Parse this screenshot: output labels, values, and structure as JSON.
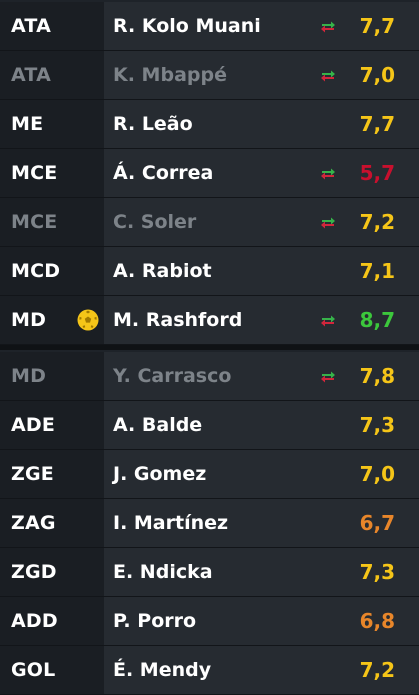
{
  "colors": {
    "yellow": "#f5c518",
    "red": "#c8102e",
    "green": "#3cc83c",
    "orange": "#e8862a"
  },
  "players": [
    {
      "pos": "ATA",
      "name": "R. Kolo Muani",
      "rating": "7,7",
      "rating_color": "#f5c518",
      "swap": true,
      "sub": false,
      "motm": false
    },
    {
      "pos": "ATA",
      "name": "K. Mbappé",
      "rating": "7,0",
      "rating_color": "#f5c518",
      "swap": true,
      "sub": true,
      "motm": false
    },
    {
      "pos": "ME",
      "name": "R. Leão",
      "rating": "7,7",
      "rating_color": "#f5c518",
      "swap": false,
      "sub": false,
      "motm": false
    },
    {
      "pos": "MCE",
      "name": "Á. Correa",
      "rating": "5,7",
      "rating_color": "#c8102e",
      "swap": true,
      "sub": false,
      "motm": false
    },
    {
      "pos": "MCE",
      "name": "C. Soler",
      "rating": "7,2",
      "rating_color": "#f5c518",
      "swap": true,
      "sub": true,
      "motm": false
    },
    {
      "pos": "MCD",
      "name": "A. Rabiot",
      "rating": "7,1",
      "rating_color": "#f5c518",
      "swap": false,
      "sub": false,
      "motm": false
    },
    {
      "pos": "MD",
      "name": "M. Rashford",
      "rating": "8,7",
      "rating_color": "#3cc83c",
      "swap": true,
      "sub": false,
      "motm": true
    },
    {
      "pos": "MD",
      "name": "Y. Carrasco",
      "rating": "7,8",
      "rating_color": "#f5c518",
      "swap": true,
      "sub": true,
      "motm": false
    },
    {
      "pos": "ADE",
      "name": "A. Balde",
      "rating": "7,3",
      "rating_color": "#f5c518",
      "swap": false,
      "sub": false,
      "motm": false
    },
    {
      "pos": "ZGE",
      "name": "J. Gomez",
      "rating": "7,0",
      "rating_color": "#f5c518",
      "swap": false,
      "sub": false,
      "motm": false
    },
    {
      "pos": "ZAG",
      "name": "I. Martínez",
      "rating": "6,7",
      "rating_color": "#e8862a",
      "swap": false,
      "sub": false,
      "motm": false
    },
    {
      "pos": "ZGD",
      "name": "E. Ndicka",
      "rating": "7,3",
      "rating_color": "#f5c518",
      "swap": false,
      "sub": false,
      "motm": false
    },
    {
      "pos": "ADD",
      "name": "P. Porro",
      "rating": "6,8",
      "rating_color": "#e8862a",
      "swap": false,
      "sub": false,
      "motm": false
    },
    {
      "pos": "GOL",
      "name": "É. Mendy",
      "rating": "7,2",
      "rating_color": "#f5c518",
      "swap": false,
      "sub": false,
      "motm": false
    }
  ]
}
